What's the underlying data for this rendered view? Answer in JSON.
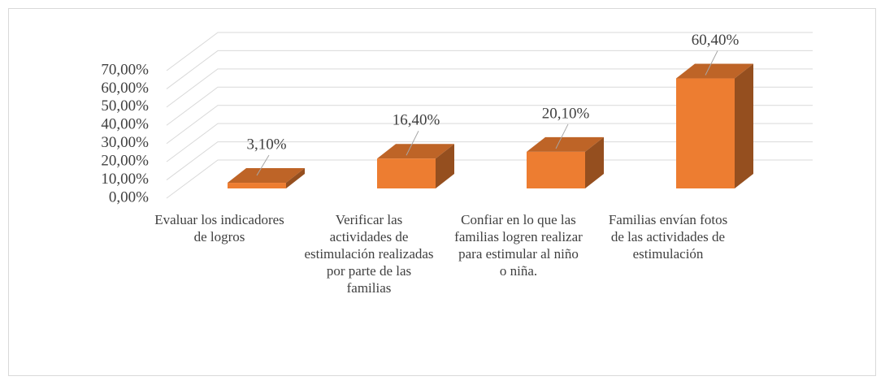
{
  "chart_data": {
    "type": "bar3d",
    "categories": [
      "Evaluar los indicadores de logros",
      "Verificar las actividades de estimulación realizadas por parte de las familias",
      "Confiar en lo que las familias logren realizar para estimular al niño o niña.",
      "Familias envían fotos de las actividades de estimulación"
    ],
    "values": [
      3.1,
      16.4,
      20.1,
      60.4
    ],
    "value_labels": [
      "3,10%",
      "16,40%",
      "20,10%",
      "60,40%"
    ],
    "color": "#ed7d31",
    "ylim": [
      0,
      70
    ],
    "yticks": [
      {
        "value": 0,
        "label": "0,00%"
      },
      {
        "value": 10,
        "label": "10,00%"
      },
      {
        "value": 20,
        "label": "20,00%"
      },
      {
        "value": 30,
        "label": "30,00%"
      },
      {
        "value": 40,
        "label": "40,00%"
      },
      {
        "value": 50,
        "label": "50,00%"
      },
      {
        "value": 60,
        "label": "60,00%"
      },
      {
        "value": 70,
        "label": "70,00%"
      }
    ],
    "grid": true
  }
}
